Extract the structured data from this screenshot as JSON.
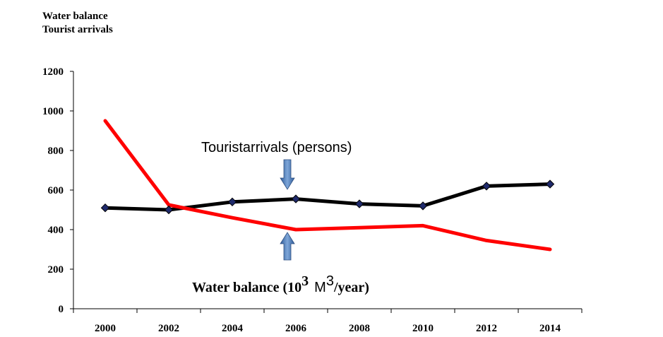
{
  "header": {
    "line1": "Water balance",
    "line2": "Tourist arrivals"
  },
  "annotations": {
    "tourist": "Touristarrivals (persons)",
    "water_prefix": "Water balance (10",
    "water_exp1": "3",
    "water_mid": "M",
    "water_exp2": "3",
    "water_suffix": "/year)"
  },
  "colors": {
    "water": "#ff0000",
    "tourist": "#000000",
    "marker": "#1f2a6b",
    "arrow": "#4a78b5"
  },
  "chart_data": {
    "type": "line",
    "x": [
      2000,
      2002,
      2004,
      2006,
      2008,
      2010,
      2012,
      2014
    ],
    "categories": [
      "2000",
      "2002",
      "2004",
      "2006",
      "2008",
      "2010",
      "2012",
      "2014"
    ],
    "yticks": [
      "0",
      "200",
      "400",
      "600",
      "800",
      "1000",
      "1200"
    ],
    "ylim": [
      0,
      1200
    ],
    "grid": false,
    "series": [
      {
        "key": "tourist",
        "values": [
          510,
          500,
          540,
          555,
          530,
          520,
          620,
          630
        ],
        "markers": true
      },
      {
        "key": "water",
        "values": [
          950,
          525,
          460,
          400,
          410,
          420,
          345,
          300
        ],
        "markers": false
      }
    ]
  }
}
